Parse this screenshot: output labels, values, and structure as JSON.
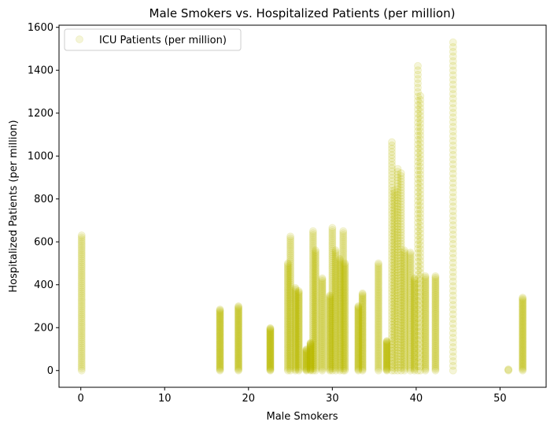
{
  "chart_data": {
    "type": "scatter",
    "title": "Male Smokers vs. Hospitalized Patients (per million)",
    "xlabel": "Male Smokers",
    "ylabel": "Hospitalized Patients (per million)",
    "xlim": [
      -2.6,
      55.5
    ],
    "ylim": [
      -78,
      1610
    ],
    "xticks": [
      0,
      10,
      20,
      30,
      40,
      50
    ],
    "yticks": [
      0,
      200,
      400,
      600,
      800,
      1000,
      1200,
      1400,
      1600
    ],
    "grid": false,
    "legend": {
      "position": "upper-left",
      "entries": [
        "ICU Patients (per million)"
      ]
    },
    "series": [
      {
        "name": "ICU Patients (per million)",
        "color": "#bfbf00",
        "alpha": 0.15,
        "columns": [
          {
            "x": 0.1,
            "y_max": 630
          },
          {
            "x": 16.6,
            "y_max": 285
          },
          {
            "x": 18.8,
            "y_max": 300
          },
          {
            "x": 22.6,
            "y_max": 200
          },
          {
            "x": 24.7,
            "y_max": 500
          },
          {
            "x": 25.0,
            "y_max": 625
          },
          {
            "x": 25.6,
            "y_max": 385
          },
          {
            "x": 26.0,
            "y_max": 370
          },
          {
            "x": 26.9,
            "y_max": 100
          },
          {
            "x": 27.4,
            "y_max": 130
          },
          {
            "x": 27.7,
            "y_max": 650
          },
          {
            "x": 28.0,
            "y_max": 560
          },
          {
            "x": 28.8,
            "y_max": 430
          },
          {
            "x": 29.7,
            "y_max": 350
          },
          {
            "x": 30.0,
            "y_max": 665
          },
          {
            "x": 30.4,
            "y_max": 560
          },
          {
            "x": 30.9,
            "y_max": 520
          },
          {
            "x": 31.3,
            "y_max": 650
          },
          {
            "x": 31.5,
            "y_max": 500
          },
          {
            "x": 33.1,
            "y_max": 300
          },
          {
            "x": 33.6,
            "y_max": 360
          },
          {
            "x": 35.5,
            "y_max": 500
          },
          {
            "x": 36.5,
            "y_max": 140
          },
          {
            "x": 37.1,
            "y_max": 1065
          },
          {
            "x": 37.4,
            "y_max": 840
          },
          {
            "x": 37.8,
            "y_max": 940
          },
          {
            "x": 38.2,
            "y_max": 920
          },
          {
            "x": 38.6,
            "y_max": 560
          },
          {
            "x": 39.3,
            "y_max": 550
          },
          {
            "x": 39.8,
            "y_max": 430
          },
          {
            "x": 40.2,
            "y_max": 1420
          },
          {
            "x": 40.5,
            "y_max": 1280
          },
          {
            "x": 41.1,
            "y_max": 440
          },
          {
            "x": 42.3,
            "y_max": 440
          },
          {
            "x": 44.4,
            "y_max": 1530
          },
          {
            "x": 51.0,
            "y_max": 8
          },
          {
            "x": 52.7,
            "y_max": 340
          }
        ]
      }
    ]
  }
}
